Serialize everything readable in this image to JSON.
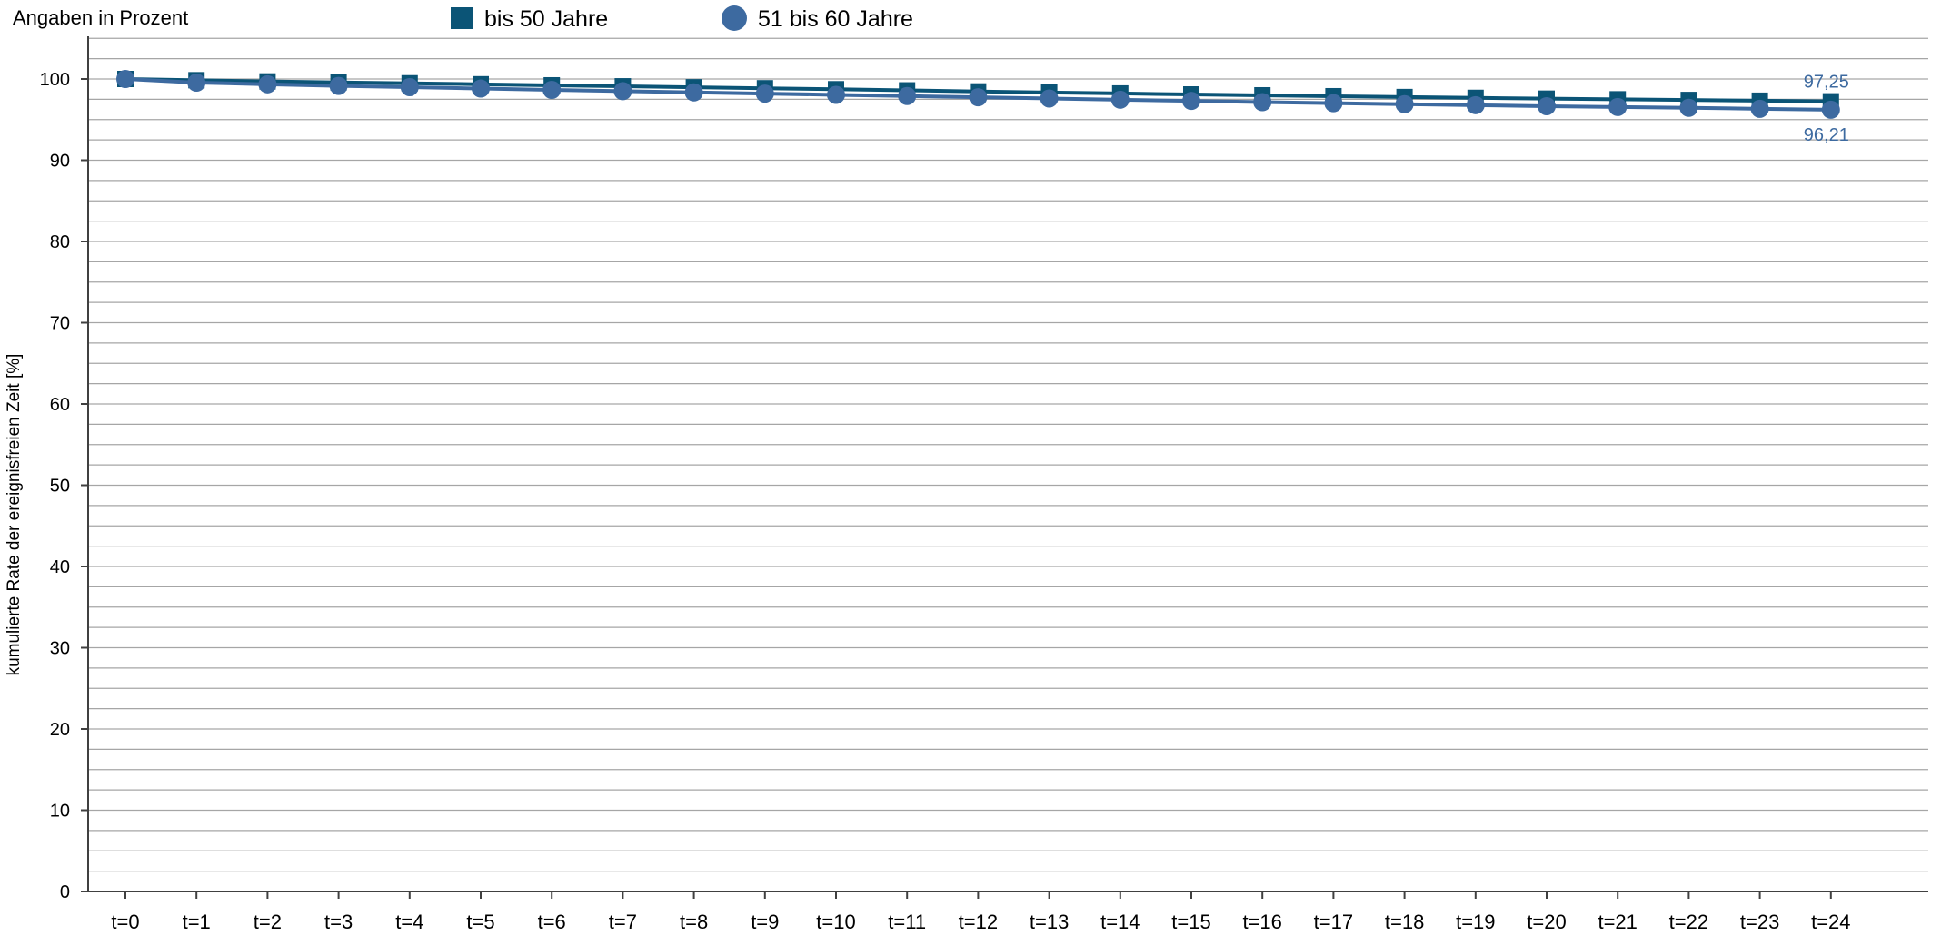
{
  "chart_data": {
    "type": "line",
    "note_label": "Angaben in Prozent",
    "ylabel": "kumulierte Rate der ereignisfreien Zeit [%]",
    "xlabel": "",
    "categories": [
      "t=0",
      "t=1",
      "t=2",
      "t=3",
      "t=4",
      "t=5",
      "t=6",
      "t=7",
      "t=8",
      "t=9",
      "t=10",
      "t=11",
      "t=12",
      "t=13",
      "t=14",
      "t=15",
      "t=16",
      "t=17",
      "t=18",
      "t=19",
      "t=20",
      "t=21",
      "t=22",
      "t=23",
      "t=24"
    ],
    "ylim": [
      0,
      100
    ],
    "yticks": [
      0,
      10,
      20,
      30,
      40,
      50,
      60,
      70,
      80,
      90,
      100
    ],
    "grid": true,
    "legend_position": "top",
    "series": [
      {
        "name": "bis 50 Jahre",
        "marker": "square",
        "color": "#0b5476",
        "values": [
          100,
          99.85,
          99.7,
          99.58,
          99.47,
          99.35,
          99.22,
          99.1,
          98.98,
          98.86,
          98.74,
          98.6,
          98.47,
          98.34,
          98.22,
          98.1,
          97.99,
          97.88,
          97.78,
          97.68,
          97.58,
          97.5,
          97.42,
          97.33,
          97.25
        ],
        "end_label": "97,25"
      },
      {
        "name": "51 bis 60 Jahre",
        "marker": "circle",
        "color": "#3d6aa0",
        "values": [
          100,
          99.55,
          99.35,
          99.15,
          99.0,
          98.82,
          98.66,
          98.5,
          98.35,
          98.2,
          98.05,
          97.9,
          97.75,
          97.6,
          97.45,
          97.3,
          97.15,
          97.02,
          96.9,
          96.78,
          96.65,
          96.55,
          96.45,
          96.33,
          96.21
        ],
        "end_label": "96,21"
      }
    ]
  }
}
